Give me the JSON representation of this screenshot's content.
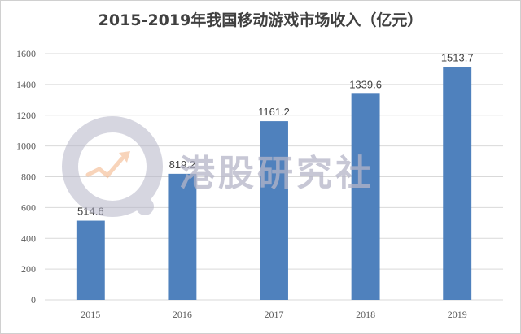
{
  "chart_data": {
    "type": "bar",
    "title": "2015-2019年我国移动游戏市场收入（亿元）",
    "categories": [
      "2015",
      "2016",
      "2017",
      "2018",
      "2019"
    ],
    "values": [
      514.6,
      819.2,
      1161.2,
      1339.6,
      1513.7
    ],
    "value_labels": [
      "514.6",
      "819.2",
      "1161.2",
      "1339.6",
      "1513.7"
    ],
    "ylim": [
      0,
      1600
    ],
    "yticks": [
      0,
      200,
      400,
      600,
      800,
      1000,
      1200,
      1400,
      1600
    ],
    "grid": true,
    "legend": "none",
    "bar_color": "#4f81bd"
  },
  "watermark": {
    "text": "港股研究社"
  },
  "colors": {
    "gridline": "#d9d9d9",
    "axis_text": "#595959",
    "watermark": "#b5b5c8"
  }
}
